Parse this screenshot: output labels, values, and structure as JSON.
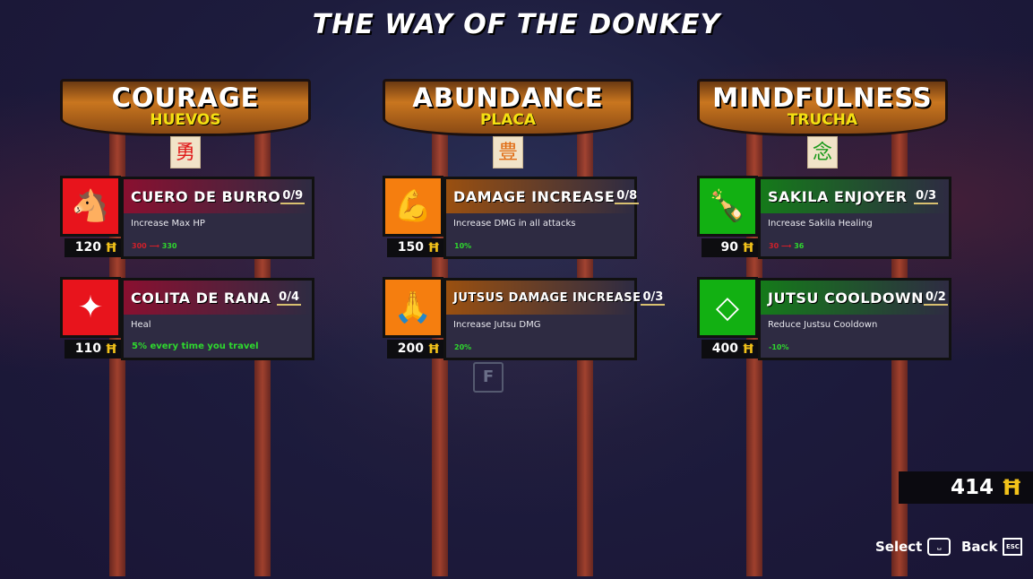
{
  "title": "THE WAY OF THE DONKEY",
  "currency_total": "414",
  "floor_key": "F",
  "controls": {
    "select_label": "Select",
    "select_key": "␣",
    "back_label": "Back",
    "back_key": "ESC"
  },
  "categories": [
    {
      "name": "COURAGE",
      "subtitle": "HUEVOS",
      "kanji": "勇",
      "kanji_color": "#e01a1a",
      "color": "#e8141c",
      "header_grad": "#8a1030",
      "skills": [
        {
          "name": "CUERO DE BURRO",
          "rank": "0/9",
          "desc": "Increase Max HP",
          "from": "300",
          "to": "330",
          "bonus": "",
          "cost": "120",
          "icon": "donkey-body-icon"
        },
        {
          "name": "COLITA DE RANA",
          "rank": "0/4",
          "desc": "Heal",
          "from": "",
          "to": "",
          "bonus": "5% every time you travel",
          "cost": "110",
          "icon": "frog-tail-icon"
        }
      ]
    },
    {
      "name": "ABUNDANCE",
      "subtitle": "PLACA",
      "kanji": "豊",
      "kanji_color": "#e06a10",
      "color": "#f57e0f",
      "header_grad": "#9a5010",
      "skills": [
        {
          "name": "DAMAGE INCREASE",
          "rank": "0/8",
          "desc": "Increase DMG in all attacks",
          "from": "",
          "to": "",
          "bonus": "10%",
          "cost": "150",
          "icon": "flexing-fighter-icon"
        },
        {
          "name": "JUTSUS DAMAGE INCREASE",
          "rank": "0/3",
          "desc": "Increase Jutsu DMG",
          "from": "",
          "to": "",
          "bonus": "20%",
          "cost": "200",
          "icon": "praying-hands-icon"
        }
      ]
    },
    {
      "name": "MINDFULNESS",
      "subtitle": "TRUCHA",
      "kanji": "念",
      "kanji_color": "#1a9a1a",
      "color": "#12b012",
      "header_grad": "#157a1a",
      "skills": [
        {
          "name": "SAKILA ENJOYER",
          "rank": "0/3",
          "desc": "Increase Sakila Healing",
          "from": "30",
          "to": "36",
          "bonus": "",
          "cost": "90",
          "icon": "bottle-icon"
        },
        {
          "name": "JUTSU COOLDOWN",
          "rank": "0/2",
          "desc": "Reduce Justsu Cooldown",
          "from": "",
          "to": "",
          "bonus": "-10%",
          "cost": "400",
          "icon": "cooldown-diamond-icon"
        }
      ]
    }
  ]
}
